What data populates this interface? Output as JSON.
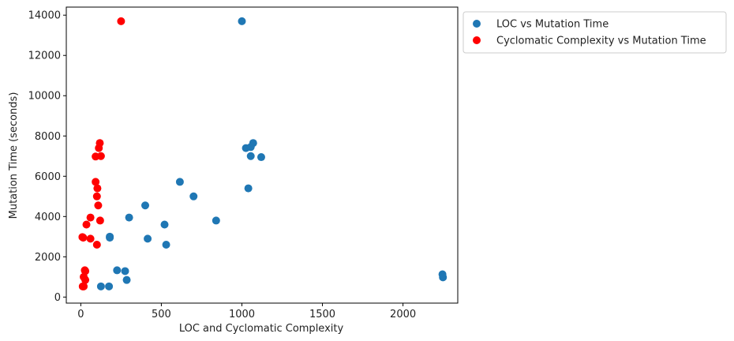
{
  "chart_data": {
    "type": "scatter",
    "xlabel": "LOC and Cyclomatic Complexity",
    "ylabel": "Mutation Time (seconds)",
    "xlim": [
      -90,
      2340
    ],
    "ylim": [
      -300,
      14400
    ],
    "x_ticks": [
      0,
      500,
      1000,
      1500,
      2000
    ],
    "x_tick_labels": [
      "0",
      "500",
      "1000",
      "1500",
      "2000"
    ],
    "y_ticks": [
      0,
      2000,
      4000,
      6000,
      8000,
      10000,
      12000,
      14000
    ],
    "y_tick_labels": [
      "0",
      "2000",
      "4000",
      "6000",
      "8000",
      "10000",
      "12000",
      "14000"
    ],
    "grid": false,
    "legend_position": "outside-top-right",
    "series": [
      {
        "name": "LOC vs Mutation Time",
        "color": "#1f77b4",
        "points": [
          [
            1000,
            13700
          ],
          [
            1025,
            7400
          ],
          [
            1055,
            7450
          ],
          [
            1070,
            7650
          ],
          [
            1055,
            7000
          ],
          [
            1120,
            6950
          ],
          [
            615,
            5720
          ],
          [
            1040,
            5400
          ],
          [
            700,
            5000
          ],
          [
            400,
            4550
          ],
          [
            300,
            3950
          ],
          [
            840,
            3800
          ],
          [
            520,
            3600
          ],
          [
            180,
            3000
          ],
          [
            180,
            2950
          ],
          [
            415,
            2900
          ],
          [
            530,
            2600
          ],
          [
            225,
            1330
          ],
          [
            275,
            1290
          ],
          [
            285,
            850
          ],
          [
            125,
            530
          ],
          [
            175,
            530
          ],
          [
            2245,
            1130
          ],
          [
            2248,
            980
          ]
        ]
      },
      {
        "name": "Cyclomatic Complexity vs Mutation Time",
        "color": "#ff0000",
        "points": [
          [
            250,
            13700
          ],
          [
            118,
            7650
          ],
          [
            112,
            7400
          ],
          [
            125,
            7000
          ],
          [
            92,
            6980
          ],
          [
            92,
            5720
          ],
          [
            103,
            5400
          ],
          [
            100,
            5000
          ],
          [
            108,
            4550
          ],
          [
            60,
            3950
          ],
          [
            120,
            3800
          ],
          [
            35,
            3600
          ],
          [
            10,
            2980
          ],
          [
            15,
            2950
          ],
          [
            60,
            2900
          ],
          [
            100,
            2600
          ],
          [
            25,
            1330
          ],
          [
            28,
            1290
          ],
          [
            18,
            1000
          ],
          [
            28,
            850
          ],
          [
            12,
            530
          ],
          [
            18,
            530
          ]
        ]
      }
    ]
  }
}
